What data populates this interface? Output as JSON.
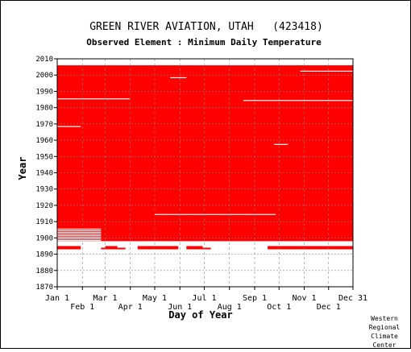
{
  "chart_data": {
    "type": "heatmap",
    "title": "GREEN RIVER AVIATION, UTAH   (423418)",
    "subtitle": "Observed Element : Minimum Daily Temperature",
    "xlabel": "Day of Year",
    "ylabel": "Year",
    "xlim": [
      1,
      365
    ],
    "ylim": [
      1870,
      2010
    ],
    "grid": true,
    "x_ticks_upper": [
      {
        "day": 1,
        "label": "Jan 1"
      },
      {
        "day": 60,
        "label": "Mar 1"
      },
      {
        "day": 121,
        "label": "May 1"
      },
      {
        "day": 182,
        "label": "Jul 1"
      },
      {
        "day": 244,
        "label": "Sep 1"
      },
      {
        "day": 305,
        "label": "Nov 1"
      },
      {
        "day": 365,
        "label": "Dec 31"
      }
    ],
    "x_ticks_lower": [
      {
        "day": 32,
        "label": "Feb 1"
      },
      {
        "day": 91,
        "label": "Apr 1"
      },
      {
        "day": 152,
        "label": "Jun 1"
      },
      {
        "day": 213,
        "label": "Aug 1"
      },
      {
        "day": 274,
        "label": "Oct 1"
      },
      {
        "day": 335,
        "label": "Dec 1"
      }
    ],
    "y_ticks": [
      1870,
      1880,
      1890,
      1900,
      1910,
      1920,
      1930,
      1940,
      1950,
      1960,
      1970,
      1980,
      1990,
      2000,
      2010
    ],
    "series": [
      {
        "values_description": "observed days plotted as red cells per year/day",
        "color": "#ff0000",
        "coverage": [
          {
            "year_from": 1893,
            "year_to": 1893,
            "day_from": 1,
            "day_to": 30
          },
          {
            "year_from": 1893,
            "year_to": 1893,
            "day_from": 55,
            "day_to": 85
          },
          {
            "year_from": 1893,
            "year_to": 1893,
            "day_from": 100,
            "day_to": 150
          },
          {
            "year_from": 1893,
            "year_to": 1893,
            "day_from": 160,
            "day_to": 190
          },
          {
            "year_from": 1893,
            "year_to": 1893,
            "day_from": 260,
            "day_to": 365
          },
          {
            "year_from": 1894,
            "year_to": 1894,
            "day_from": 1,
            "day_to": 30
          },
          {
            "year_from": 1894,
            "year_to": 1894,
            "day_from": 60,
            "day_to": 75
          },
          {
            "year_from": 1894,
            "year_to": 1894,
            "day_from": 100,
            "day_to": 150
          },
          {
            "year_from": 1894,
            "year_to": 1894,
            "day_from": 160,
            "day_to": 180
          },
          {
            "year_from": 1894,
            "year_to": 1894,
            "day_from": 260,
            "day_to": 365
          },
          {
            "year_from": 1898,
            "year_to": 2005,
            "day_from": 1,
            "day_to": 365
          }
        ],
        "gaps": [
          {
            "year": 1897,
            "day_from": 1,
            "day_to": 365
          },
          {
            "year": 1896,
            "day_from": 1,
            "day_to": 365
          },
          {
            "year": 1895,
            "day_from": 1,
            "day_to": 365
          },
          {
            "year": 1898,
            "day_from": 1,
            "day_to": 55
          },
          {
            "year": 1899,
            "day_from": 1,
            "day_to": 55
          },
          {
            "year": 1900,
            "day_from": 1,
            "day_to": 55
          },
          {
            "year": 1901,
            "day_from": 1,
            "day_to": 55
          },
          {
            "year": 1902,
            "day_from": 1,
            "day_to": 55
          },
          {
            "year": 1903,
            "day_from": 1,
            "day_to": 55
          },
          {
            "year": 1904,
            "day_from": 1,
            "day_to": 55
          },
          {
            "year": 1905,
            "day_from": 1,
            "day_to": 55
          },
          {
            "year": 1914,
            "day_from": 121,
            "day_to": 270
          },
          {
            "year": 1968,
            "day_from": 1,
            "day_to": 30
          },
          {
            "year": 1957,
            "day_from": 268,
            "day_to": 285
          },
          {
            "year": 1985,
            "day_from": 1,
            "day_to": 90
          },
          {
            "year": 1984,
            "day_from": 230,
            "day_to": 365
          },
          {
            "year": 1998,
            "day_from": 140,
            "day_to": 160
          },
          {
            "year": 2002,
            "day_from": 300,
            "day_to": 365
          }
        ]
      }
    ]
  },
  "credit": [
    "Western",
    "Regional",
    "Climate",
    "Center"
  ]
}
